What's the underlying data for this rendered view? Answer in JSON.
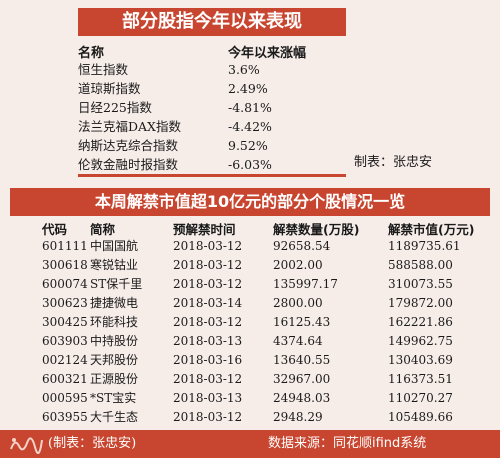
{
  "table1": {
    "title": "部分股指今年以来表现",
    "header": {
      "name": "名称",
      "value": "今年以来涨幅"
    },
    "rows": [
      {
        "name": "恒生指数",
        "value": "3.6%"
      },
      {
        "name": "道琼斯指数",
        "value": "2.49%"
      },
      {
        "name": "日经225指数",
        "value": "-4.81%"
      },
      {
        "name": "法兰克福DAX指数",
        "value": "-4.42%"
      },
      {
        "name": "纳斯达克综合指数",
        "value": "9.52%"
      },
      {
        "name": "伦敦金融时报指数",
        "value": "-6.03%"
      }
    ],
    "note": "制表：张忠安"
  },
  "table2": {
    "title": "本周解禁市值超10亿元的部分个股情况一览",
    "headers": [
      "代码",
      "简称",
      "预解禁时间",
      "解禁数量(万股)",
      "解禁市值(万元)"
    ],
    "rows": [
      [
        "601111",
        "中国国航",
        "2018-03-12",
        "92658.54",
        "1189735.61"
      ],
      [
        "300618",
        "寒锐钴业",
        "2018-03-12",
        "2002.00",
        "588588.00"
      ],
      [
        "600074",
        "ST保千里",
        "2018-03-12",
        "135997.17",
        "310073.55"
      ],
      [
        "300623",
        "捷捷微电",
        "2018-03-14",
        "2800.00",
        "179872.00"
      ],
      [
        "300425",
        "环能科技",
        "2018-03-12",
        "16125.43",
        "162221.86"
      ],
      [
        "603903",
        "中持股份",
        "2018-03-13",
        "4374.64",
        "149962.75"
      ],
      [
        "002124",
        "天邦股份",
        "2018-03-16",
        "13640.55",
        "130403.69"
      ],
      [
        "600321",
        "正源股份",
        "2018-03-12",
        "32967.00",
        "116373.51"
      ],
      [
        "000595",
        "*ST宝实",
        "2018-03-13",
        "24948.03",
        "110270.27"
      ],
      [
        "603955",
        "大千生态",
        "2018-03-12",
        "2948.29",
        "105489.66"
      ]
    ]
  },
  "footer": {
    "credit": "(制表：张忠安)",
    "source": "数据来源：同花顺ifind系统",
    "logo_icon": "newspaper-logo-icon"
  },
  "colors": {
    "accent": "#c8462f",
    "background": "#f6ede9"
  }
}
